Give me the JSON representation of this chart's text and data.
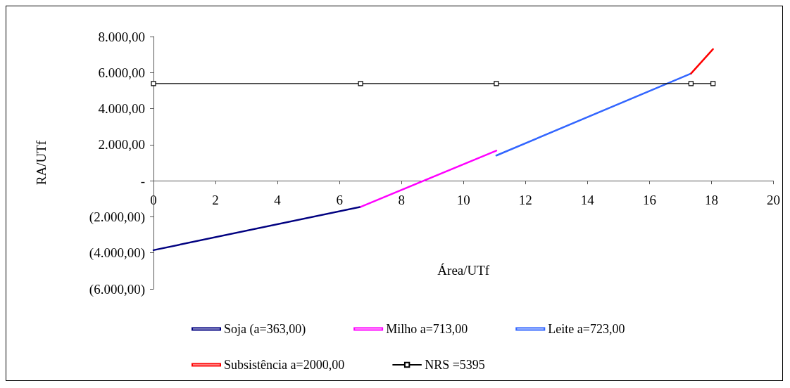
{
  "chart_data": {
    "type": "line",
    "xlabel": "Área/UTf",
    "ylabel": "RA/UTf",
    "xlim": [
      0,
      20
    ],
    "xticks": [
      0,
      2,
      4,
      6,
      8,
      10,
      12,
      14,
      16,
      18,
      20
    ],
    "ylim": [
      -6000,
      8000
    ],
    "yticks": [
      {
        "value": -6000,
        "label": "(6.000,00)"
      },
      {
        "value": -4000,
        "label": "(4.000,00)"
      },
      {
        "value": -2000,
        "label": "(2.000,00)"
      },
      {
        "value": 0,
        "label": "-"
      },
      {
        "value": 2000,
        "label": "2.000,00"
      },
      {
        "value": 4000,
        "label": "4.000,00"
      },
      {
        "value": 6000,
        "label": "6.000,00"
      },
      {
        "value": 8000,
        "label": "8.000,00"
      }
    ],
    "grid": false,
    "legend": "bottom",
    "marker": "none",
    "line_style": "solid",
    "series": [
      {
        "name": "Soja (a=363,00)",
        "color": "#000080",
        "x": [
          0,
          6.68
        ],
        "values": [
          -3850,
          -1450
        ]
      },
      {
        "name": "Milho a=713,00",
        "color": "#ff00ff",
        "x": [
          6.68,
          11.06
        ],
        "values": [
          -1450,
          1670
        ]
      },
      {
        "name": "Leite a=723,00",
        "color": "#3366ff",
        "x": [
          11.06,
          17.34
        ],
        "values": [
          1400,
          5950
        ]
      },
      {
        "name": "Subsistência a=2000,00",
        "color": "#ff0000",
        "x": [
          17.34,
          18.05
        ],
        "values": [
          5950,
          7300
        ]
      },
      {
        "name": "NRS =5395",
        "color": "#000000",
        "marker": "square",
        "x": [
          0,
          6.68,
          11.06,
          17.34,
          18.05
        ],
        "values": [
          5395,
          5395,
          5395,
          5395,
          5395
        ]
      }
    ]
  }
}
